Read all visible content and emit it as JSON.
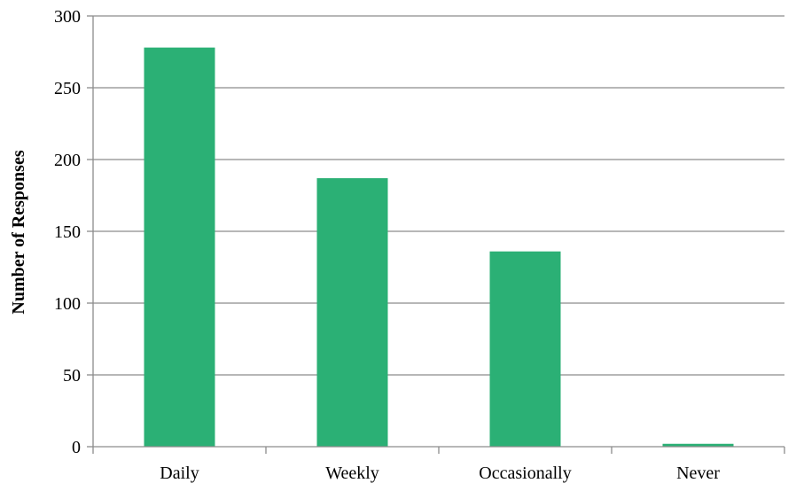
{
  "chart_data": {
    "type": "bar",
    "title": "",
    "xlabel": "",
    "ylabel": "Number of Responses",
    "categories": [
      "Daily",
      "Weekly",
      "Occasionally",
      "Never"
    ],
    "values": [
      278,
      187,
      136,
      2
    ],
    "ylim": [
      0,
      300
    ],
    "yticks": [
      0,
      50,
      100,
      150,
      200,
      250,
      300
    ],
    "grid": true,
    "legend": "none",
    "colors": {
      "bar": "#2bb075",
      "grid": "#8c8c8c",
      "axis": "#8c8c8c",
      "text": "#000000"
    }
  }
}
